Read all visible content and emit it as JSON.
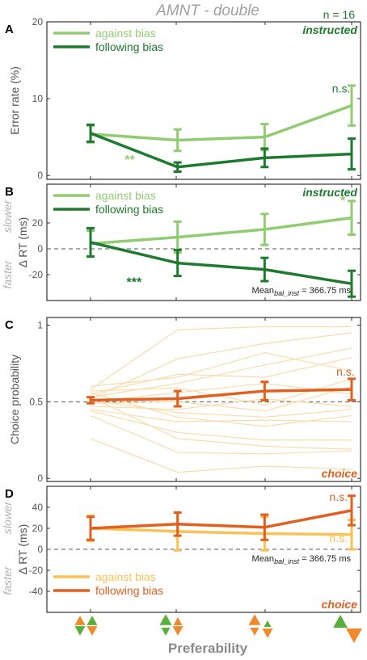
{
  "figure": {
    "title": "AMNT - double",
    "n_label": "n = 16",
    "xlabel": "Preferability"
  },
  "colors": {
    "light_green": "#92cc72",
    "dark_green": "#1e7a2e",
    "orange": "#e2601f",
    "light_orange": "#f9c256",
    "pale_orange": "#f8dcab",
    "gray": "#b0b0b0",
    "tri_orange": "#ef8a2c",
    "tri_green": "#5aae3c"
  },
  "chart_data": [
    {
      "panel": "A",
      "type": "line",
      "tag": "instructed",
      "ylabel": "Error rate (%)",
      "ylim": [
        -0.5,
        20
      ],
      "yticks": [
        0,
        10,
        20
      ],
      "x": [
        1,
        2,
        3,
        4
      ],
      "series": [
        {
          "name": "against bias",
          "values": [
            5.4,
            4.6,
            5.0,
            9.1
          ],
          "err": [
            1.1,
            1.4,
            1.7,
            2.6
          ]
        },
        {
          "name": "following bias",
          "values": [
            5.5,
            1.1,
            2.3,
            2.8
          ],
          "err": [
            1.1,
            0.6,
            1.2,
            2.0
          ]
        }
      ],
      "annotations": [
        {
          "text": "**",
          "x": 1.45,
          "y": 1.5
        },
        {
          "text": "n.s.",
          "x": 3.88,
          "y": 10.8
        }
      ],
      "legend": "top-left"
    },
    {
      "panel": "B",
      "type": "line",
      "tag": "instructed",
      "ylabel": "Δ RT (ms)",
      "side_labels": {
        "upper": "slower",
        "lower": "faster"
      },
      "ylim": [
        -40,
        50
      ],
      "yticks": [
        -20,
        0,
        20
      ],
      "zero_line": true,
      "x": [
        1,
        2,
        3,
        4
      ],
      "series": [
        {
          "name": "against bias",
          "values": [
            4,
            9,
            15,
            24
          ],
          "err": [
            10,
            12,
            12,
            13
          ]
        },
        {
          "name": "following bias",
          "values": [
            5,
            -11,
            -16,
            -27
          ],
          "err": [
            11,
            10,
            9,
            10
          ]
        }
      ],
      "annotations": [
        {
          "text": "*",
          "x": 3.9,
          "y": 34
        },
        {
          "text": "***",
          "x": 1.5,
          "y": -29
        }
      ],
      "note": {
        "prefix": "Mean",
        "subscript": "bal_inst",
        "suffix": " = 366.75 ms"
      },
      "legend": "top-left"
    },
    {
      "panel": "C",
      "type": "line",
      "tag": "choice",
      "ylabel": "Choice probability",
      "ylim": [
        -0.02,
        1.05
      ],
      "yticks": [
        0,
        0.5,
        1
      ],
      "ytick_labels": [
        "0",
        "0.5",
        "1"
      ],
      "reference_line": 0.5,
      "x": [
        1,
        2,
        3,
        4
      ],
      "series": [
        {
          "name": "following bias",
          "values": [
            0.51,
            0.52,
            0.57,
            0.58
          ],
          "err": [
            0.02,
            0.05,
            0.06,
            0.07
          ]
        }
      ],
      "individual_lines": [
        [
          0.58,
          0.97,
          0.99,
          0.99
        ],
        [
          0.52,
          0.78,
          0.88,
          0.95
        ],
        [
          0.55,
          0.68,
          0.66,
          0.79
        ],
        [
          0.6,
          0.66,
          0.82,
          0.7
        ],
        [
          0.53,
          0.62,
          0.74,
          0.85
        ],
        [
          0.57,
          0.59,
          0.48,
          0.65
        ],
        [
          0.5,
          0.56,
          0.62,
          0.55
        ],
        [
          0.49,
          0.5,
          0.44,
          0.6
        ],
        [
          0.47,
          0.45,
          0.52,
          0.47
        ],
        [
          0.51,
          0.43,
          0.4,
          0.45
        ],
        [
          0.56,
          0.4,
          0.34,
          0.41
        ],
        [
          0.45,
          0.37,
          0.38,
          0.37
        ],
        [
          0.44,
          0.3,
          0.25,
          0.25
        ],
        [
          0.53,
          0.26,
          0.21,
          0.19
        ],
        [
          0.41,
          0.17,
          0.16,
          0.18
        ],
        [
          0.26,
          0.04,
          0.08,
          0.06
        ]
      ],
      "annotations": [
        {
          "text": "n.s.",
          "x": 3.93,
          "y": 0.67
        }
      ]
    },
    {
      "panel": "D",
      "type": "line",
      "tag": "choice",
      "ylabel": "Δ RT (ms)",
      "side_labels": {
        "upper": "slower",
        "lower": "faster"
      },
      "ylim": [
        -60,
        60
      ],
      "yticks": [
        -40,
        -20,
        0,
        20,
        40
      ],
      "zero_line": true,
      "x": [
        1,
        2,
        3,
        4
      ],
      "series": [
        {
          "name": "against bias",
          "values": [
            20,
            17,
            15,
            14
          ],
          "err": [
            12,
            18,
            16,
            14
          ]
        },
        {
          "name": "following bias",
          "values": [
            20,
            24,
            21,
            37
          ],
          "err": [
            11,
            11,
            12,
            14
          ]
        }
      ],
      "annotations": [
        {
          "text": "n.s.",
          "x": 3.85,
          "y": 46
        },
        {
          "text": "n.s.",
          "x": 3.85,
          "y": 7
        }
      ],
      "note": {
        "prefix": "Mean",
        "subscript": "bal_inst",
        "suffix": " = 366.75 ms"
      },
      "legend": "bottom-left"
    }
  ]
}
